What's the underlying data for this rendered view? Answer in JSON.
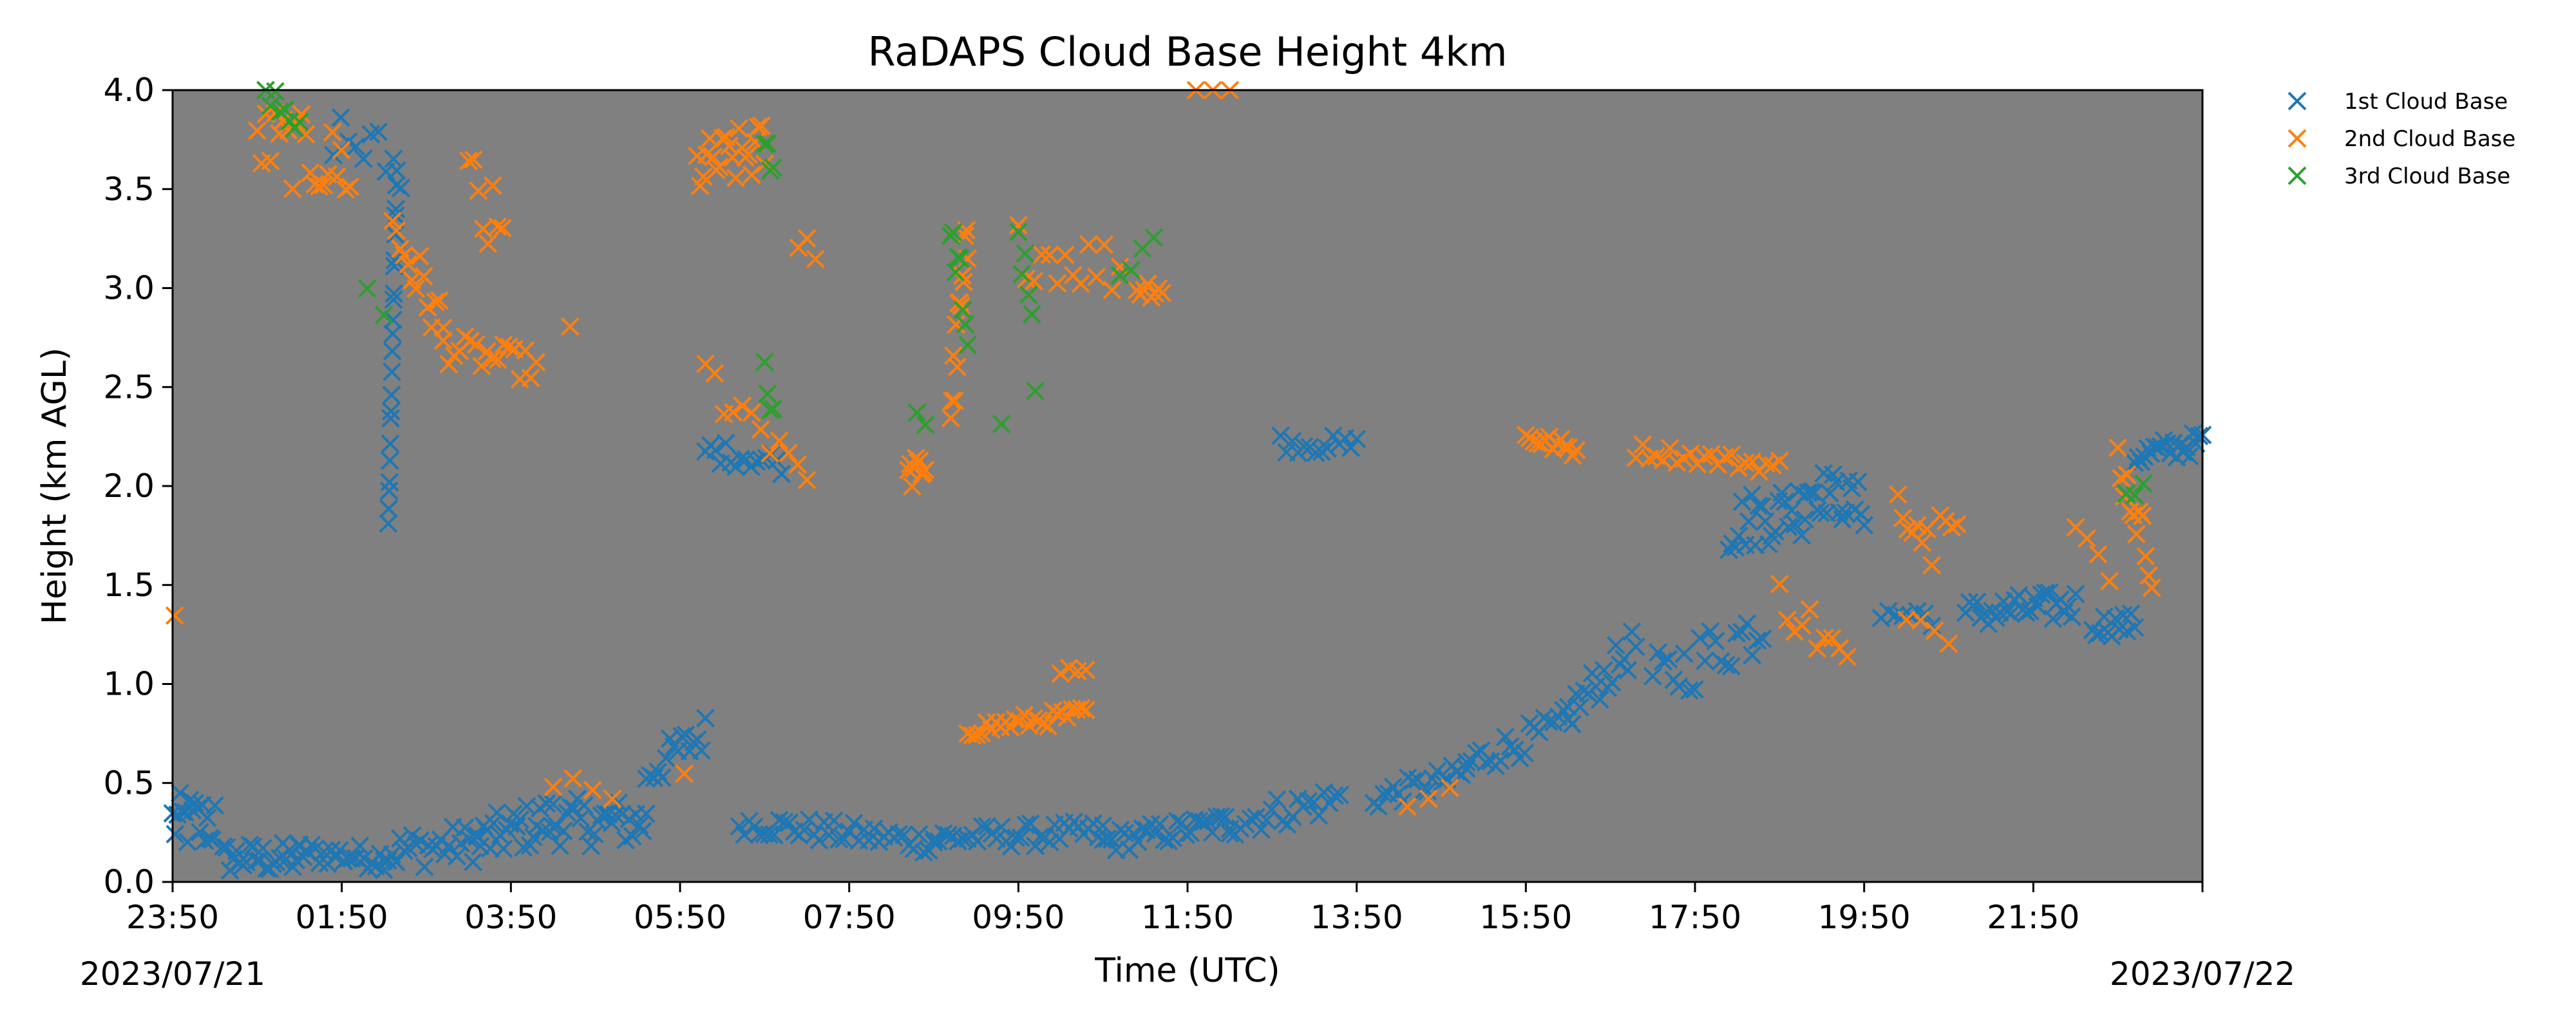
{
  "chart_data": {
    "type": "scatter",
    "title": "RaDAPS Cloud Base Height 4km",
    "xlabel": "Time (UTC)",
    "ylabel": "Height (km AGL)",
    "xlim_hours": [
      0,
      24
    ],
    "ylim": [
      0,
      4.0
    ],
    "x_tick_labels": [
      "23:50",
      "01:50",
      "03:50",
      "05:50",
      "07:50",
      "09:50",
      "11:50",
      "13:50",
      "15:50",
      "17:50",
      "19:50",
      "21:50"
    ],
    "y_tick_labels": [
      "0.0",
      "0.5",
      "1.0",
      "1.5",
      "2.0",
      "2.5",
      "3.0",
      "3.5",
      "4.0"
    ],
    "start_date_label": "2023/07/21",
    "end_date_label": "2023/07/22",
    "background_color": "#808080",
    "grid": false,
    "marker": "x",
    "legend_position": "outside-top-right",
    "series": [
      {
        "name": "1st Cloud Base",
        "color": "#1f77b4",
        "segments": [
          {
            "x": [
              0.0,
              0.5
            ],
            "y": [
              0.3,
              0.3
            ],
            "spread": 0.15,
            "n": 18
          },
          {
            "x": [
              0.6,
              1.5
            ],
            "y": [
              0.12,
              0.12
            ],
            "spread": 0.08,
            "n": 24
          },
          {
            "x": [
              1.5,
              2.5
            ],
            "y": [
              0.15,
              0.12
            ],
            "spread": 0.06,
            "n": 22
          },
          {
            "x": [
              2.5,
              3.6
            ],
            "y": [
              0.15,
              0.2
            ],
            "spread": 0.1,
            "n": 24
          },
          {
            "x": [
              3.6,
              4.5
            ],
            "y": [
              0.2,
              0.32
            ],
            "spread": 0.12,
            "n": 24
          },
          {
            "x": [
              4.5,
              5.6
            ],
            "y": [
              0.3,
              0.3
            ],
            "spread": 0.12,
            "n": 28
          },
          {
            "x": [
              5.6,
              6.3
            ],
            "y": [
              0.55,
              0.75
            ],
            "spread": 0.1,
            "n": 16
          },
          {
            "x": [
              6.7,
              9.0
            ],
            "y": [
              0.3,
              0.2
            ],
            "spread": 0.06,
            "n": 40
          },
          {
            "x": [
              9.0,
              11.0
            ],
            "y": [
              0.22,
              0.25
            ],
            "spread": 0.06,
            "n": 36
          },
          {
            "x": [
              11.0,
              12.5
            ],
            "y": [
              0.2,
              0.3
            ],
            "spread": 0.06,
            "n": 30
          },
          {
            "x": [
              12.5,
              13.8
            ],
            "y": [
              0.3,
              0.42
            ],
            "spread": 0.08,
            "n": 22
          },
          {
            "x": [
              14.2,
              15.3
            ],
            "y": [
              0.42,
              0.55
            ],
            "spread": 0.06,
            "n": 20
          },
          {
            "x": [
              15.3,
              16.5
            ],
            "y": [
              0.6,
              0.8
            ],
            "spread": 0.08,
            "n": 22
          },
          {
            "x": [
              16.5,
              17.3
            ],
            "y": [
              0.85,
              1.2
            ],
            "spread": 0.1,
            "n": 18
          },
          {
            "x": [
              17.5,
              18.8
            ],
            "y": [
              1.0,
              1.3
            ],
            "spread": 0.15,
            "n": 22
          },
          {
            "x": [
              18.4,
              19.3
            ],
            "y": [
              1.8,
              1.9
            ],
            "spread": 0.15,
            "n": 24
          },
          {
            "x": [
              19.3,
              20.0
            ],
            "y": [
              2.0,
              1.9
            ],
            "spread": 0.12,
            "n": 20
          },
          {
            "x": [
              20.2,
              20.8
            ],
            "y": [
              1.35,
              1.35
            ],
            "spread": 0.06,
            "n": 8
          },
          {
            "x": [
              21.2,
              22.5
            ],
            "y": [
              1.35,
              1.4
            ],
            "spread": 0.08,
            "n": 30
          },
          {
            "x": [
              22.7,
              23.2
            ],
            "y": [
              1.3,
              1.3
            ],
            "spread": 0.06,
            "n": 12
          },
          {
            "x": [
              23.2,
              24.0
            ],
            "y": [
              2.15,
              2.22
            ],
            "spread": 0.06,
            "n": 22
          },
          {
            "x": [
              6.3,
              7.2
            ],
            "y": [
              2.18,
              2.12
            ],
            "spread": 0.06,
            "n": 16
          },
          {
            "x": [
              13.1,
              14.0
            ],
            "y": [
              2.22,
              2.2
            ],
            "spread": 0.05,
            "n": 14
          },
          {
            "x": [
              1.9,
              2.7
            ],
            "y": [
              3.8,
              3.6
            ],
            "spread": 0.15,
            "n": 10
          },
          {
            "x": [
              2.55,
              2.65
            ],
            "y": [
              1.8,
              3.6
            ],
            "spread": 0.04,
            "n": 22
          }
        ]
      },
      {
        "name": "2nd Cloud Base",
        "color": "#ff7f0e",
        "segments": [
          {
            "x": [
              0.0,
              0.05
            ],
            "y": [
              1.33,
              1.33
            ],
            "spread": 0.02,
            "n": 1
          },
          {
            "x": [
              1.0,
              2.1
            ],
            "y": [
              3.75,
              3.6
            ],
            "spread": 0.2,
            "n": 22
          },
          {
            "x": [
              2.6,
              3.2
            ],
            "y": [
              3.3,
              2.8
            ],
            "spread": 0.15,
            "n": 14
          },
          {
            "x": [
              3.2,
              4.3
            ],
            "y": [
              2.7,
              2.6
            ],
            "spread": 0.08,
            "n": 18
          },
          {
            "x": [
              3.5,
              3.9
            ],
            "y": [
              3.5,
              3.2
            ],
            "spread": 0.25,
            "n": 8
          },
          {
            "x": [
              6.2,
              7.0
            ],
            "y": [
              3.6,
              3.7
            ],
            "spread": 0.15,
            "n": 22
          },
          {
            "x": [
              6.3,
              7.5
            ],
            "y": [
              2.55,
              2.1
            ],
            "spread": 0.12,
            "n": 12
          },
          {
            "x": [
              7.4,
              7.6
            ],
            "y": [
              3.2,
              3.2
            ],
            "spread": 0.06,
            "n": 3
          },
          {
            "x": [
              8.7,
              8.9
            ],
            "y": [
              2.05,
              2.1
            ],
            "spread": 0.08,
            "n": 10
          },
          {
            "x": [
              9.2,
              9.4
            ],
            "y": [
              2.4,
              3.2
            ],
            "spread": 0.2,
            "n": 14
          },
          {
            "x": [
              9.4,
              10.8
            ],
            "y": [
              0.77,
              0.85
            ],
            "spread": 0.04,
            "n": 26
          },
          {
            "x": [
              10.5,
              10.8
            ],
            "y": [
              1.05,
              1.05
            ],
            "spread": 0.04,
            "n": 4
          },
          {
            "x": [
              10.0,
              11.2
            ],
            "y": [
              3.2,
              3.1
            ],
            "spread": 0.15,
            "n": 14
          },
          {
            "x": [
              11.4,
              11.7
            ],
            "y": [
              3.0,
              3.0
            ],
            "spread": 0.05,
            "n": 8
          },
          {
            "x": [
              12.1,
              12.5
            ],
            "y": [
              4.0,
              4.0
            ],
            "spread": 0.01,
            "n": 3
          },
          {
            "x": [
              14.6,
              15.1
            ],
            "y": [
              0.4,
              0.47
            ],
            "spread": 0.03,
            "n": 3
          },
          {
            "x": [
              16.0,
              16.6
            ],
            "y": [
              2.25,
              2.18
            ],
            "spread": 0.04,
            "n": 14
          },
          {
            "x": [
              17.3,
              19.0
            ],
            "y": [
              2.18,
              2.1
            ],
            "spread": 0.04,
            "n": 22
          },
          {
            "x": [
              19.0,
              19.8
            ],
            "y": [
              1.45,
              1.1
            ],
            "spread": 0.12,
            "n": 10
          },
          {
            "x": [
              20.5,
              21.0
            ],
            "y": [
              1.3,
              1.25
            ],
            "spread": 0.05,
            "n": 4
          },
          {
            "x": [
              20.4,
              20.8
            ],
            "y": [
              1.95,
              1.7
            ],
            "spread": 0.1,
            "n": 8
          },
          {
            "x": [
              20.9,
              21.1
            ],
            "y": [
              1.9,
              1.8
            ],
            "spread": 0.05,
            "n": 4
          },
          {
            "x": [
              22.5,
              22.9
            ],
            "y": [
              1.8,
              1.52
            ],
            "spread": 0.06,
            "n": 4
          },
          {
            "x": [
              23.0,
              23.4
            ],
            "y": [
              2.15,
              1.6
            ],
            "spread": 0.12,
            "n": 12
          },
          {
            "x": [
              4.5,
              5.2
            ],
            "y": [
              0.5,
              0.45
            ],
            "spread": 0.05,
            "n": 4
          },
          {
            "x": [
              6.0,
              6.1
            ],
            "y": [
              0.55,
              0.55
            ],
            "spread": 0.02,
            "n": 1
          },
          {
            "x": [
              4.6,
              4.8
            ],
            "y": [
              2.8,
              2.8
            ],
            "spread": 0.02,
            "n": 1
          }
        ]
      },
      {
        "name": "3rd Cloud Base",
        "color": "#2ca02c",
        "segments": [
          {
            "x": [
              1.1,
              1.5
            ],
            "y": [
              3.95,
              3.85
            ],
            "spread": 0.08,
            "n": 8
          },
          {
            "x": [
              2.3,
              2.5
            ],
            "y": [
              3.0,
              2.9
            ],
            "spread": 0.04,
            "n": 2
          },
          {
            "x": [
              7.0,
              7.1
            ],
            "y": [
              3.7,
              3.6
            ],
            "spread": 0.08,
            "n": 4
          },
          {
            "x": [
              7.0,
              7.1
            ],
            "y": [
              2.55,
              2.35
            ],
            "spread": 0.08,
            "n": 4
          },
          {
            "x": [
              8.8,
              8.9
            ],
            "y": [
              2.4,
              2.3
            ],
            "spread": 0.05,
            "n": 2
          },
          {
            "x": [
              9.2,
              9.4
            ],
            "y": [
              3.3,
              2.85
            ],
            "spread": 0.15,
            "n": 8
          },
          {
            "x": [
              10.0,
              10.2
            ],
            "y": [
              3.3,
              2.55
            ],
            "spread": 0.2,
            "n": 6
          },
          {
            "x": [
              11.2,
              11.6
            ],
            "y": [
              3.1,
              3.2
            ],
            "spread": 0.06,
            "n": 4
          },
          {
            "x": [
              9.7,
              9.9
            ],
            "y": [
              2.3,
              2.3
            ],
            "spread": 0.02,
            "n": 1
          },
          {
            "x": [
              23.1,
              23.3
            ],
            "y": [
              1.95,
              2.0
            ],
            "spread": 0.04,
            "n": 3
          }
        ]
      }
    ]
  }
}
